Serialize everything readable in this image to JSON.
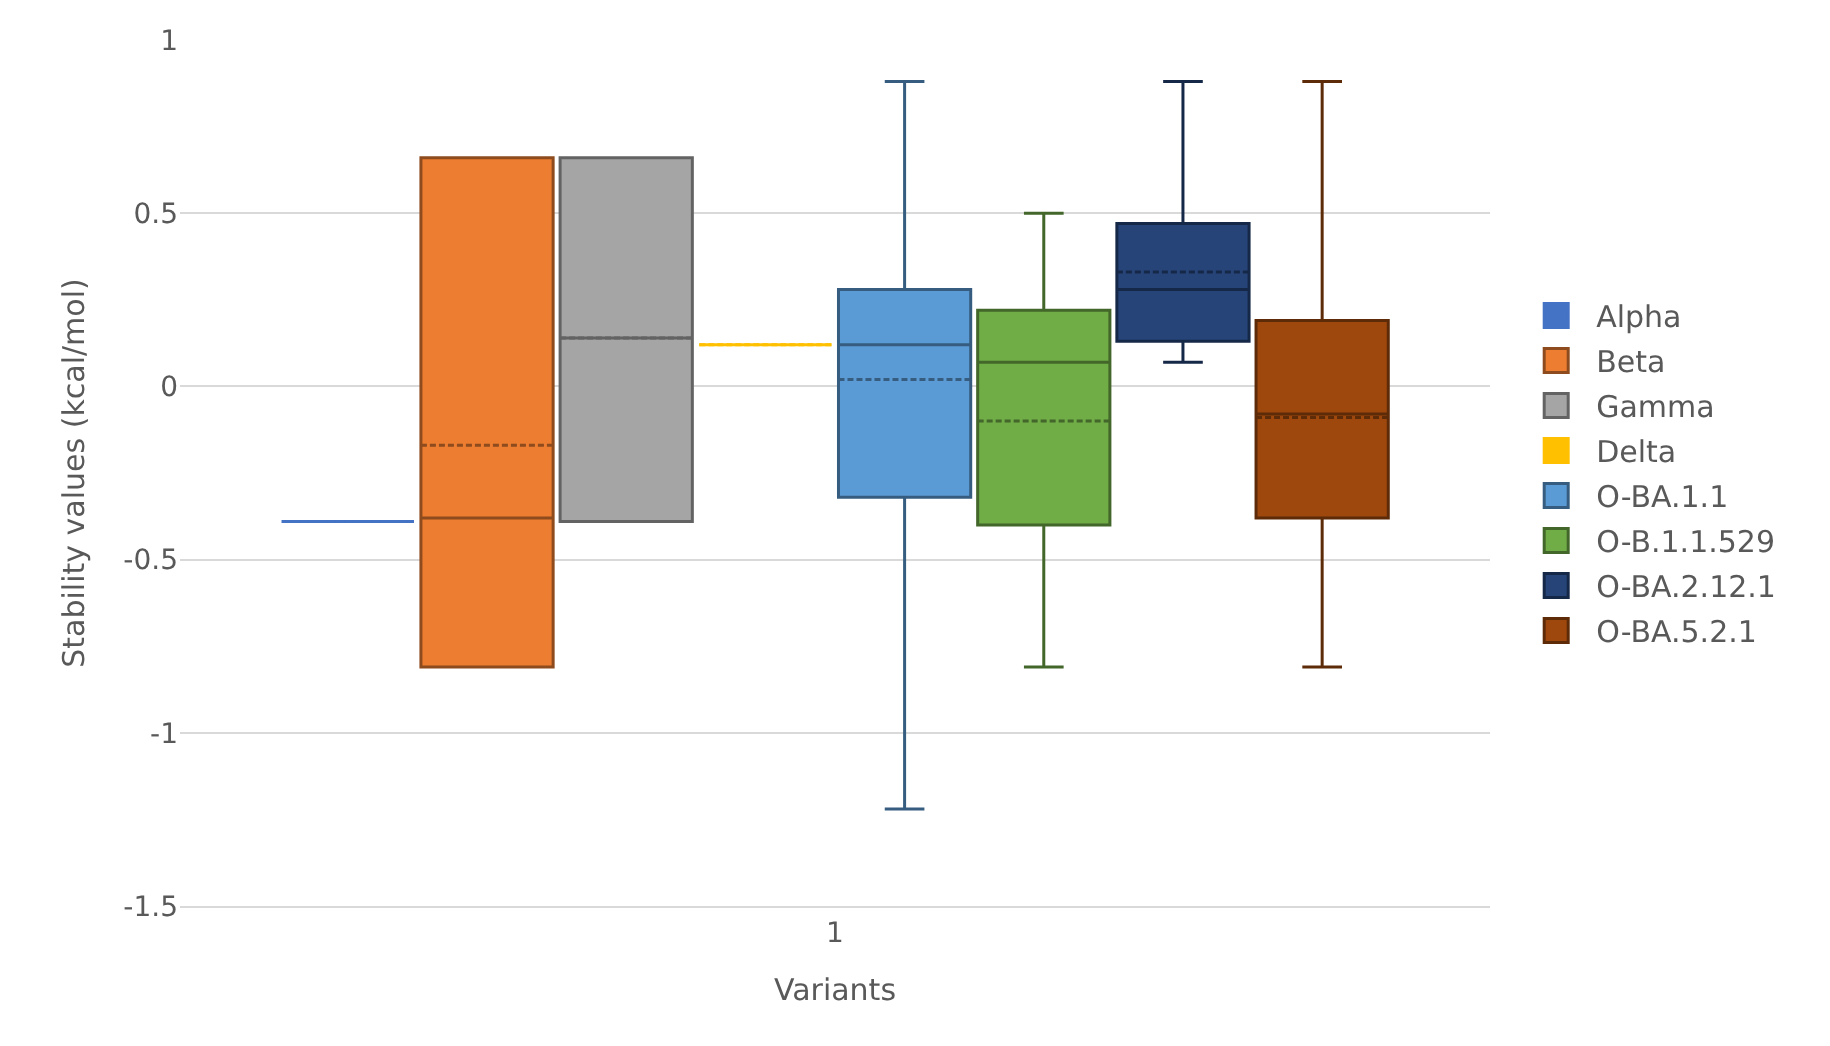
{
  "chart_data": {
    "type": "box",
    "xlabel": "Variants",
    "ylabel": "Stability values (kcal/mol)",
    "categories": [
      "1"
    ],
    "ylim": [
      -1.5,
      1
    ],
    "yticks": [
      -1.5,
      -1,
      -0.5,
      0,
      0.5,
      1
    ],
    "grid": "y",
    "legend": "right",
    "series": [
      {
        "name": "Alpha",
        "color": "#4472c4",
        "boxes": [
          {
            "low": -0.39,
            "q1": -0.39,
            "median": -0.39,
            "q3": -0.39,
            "high": -0.39,
            "mean": -0.39
          }
        ]
      },
      {
        "name": "Beta",
        "color": "#ed7d31",
        "boxes": [
          {
            "low": -0.81,
            "q1": -0.81,
            "median": -0.38,
            "q3": 0.66,
            "high": 0.66,
            "mean": -0.17
          }
        ]
      },
      {
        "name": "Gamma",
        "color": "#a5a5a5",
        "boxes": [
          {
            "low": -0.39,
            "q1": -0.39,
            "median": 0.14,
            "q3": 0.66,
            "high": 0.66,
            "mean": 0.14
          }
        ]
      },
      {
        "name": "Delta",
        "color": "#ffc000",
        "boxes": [
          {
            "low": 0.12,
            "q1": 0.12,
            "median": 0.12,
            "q3": 0.12,
            "high": 0.12,
            "mean": 0.12
          }
        ]
      },
      {
        "name": "O-BA.1.1",
        "color": "#5b9bd5",
        "boxes": [
          {
            "low": -1.22,
            "q1": -0.32,
            "median": 0.12,
            "q3": 0.28,
            "high": 0.88,
            "mean": 0.02
          }
        ]
      },
      {
        "name": "O-B.1.1.529",
        "color": "#70ad47",
        "boxes": [
          {
            "low": -0.81,
            "q1": -0.4,
            "median": 0.07,
            "q3": 0.22,
            "high": 0.5,
            "mean": -0.1
          }
        ]
      },
      {
        "name": "O-BA.2.12.1",
        "color": "#264478",
        "boxes": [
          {
            "low": 0.07,
            "q1": 0.13,
            "median": 0.28,
            "q3": 0.47,
            "high": 0.88,
            "mean": 0.33
          }
        ]
      },
      {
        "name": "O-BA.5.2.1",
        "color": "#9e480e",
        "boxes": [
          {
            "low": -0.81,
            "q1": -0.38,
            "median": -0.08,
            "q3": 0.19,
            "high": 0.88,
            "mean": -0.09
          }
        ]
      }
    ]
  }
}
